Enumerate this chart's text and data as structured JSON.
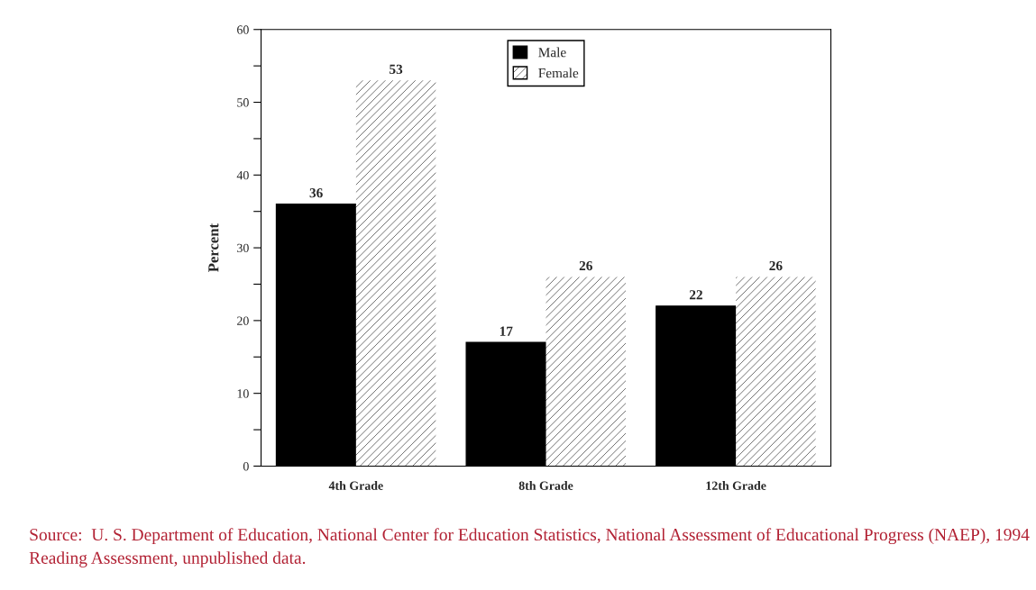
{
  "chart_data": {
    "type": "bar",
    "ylabel": "Percent",
    "categories": [
      "4th Grade",
      "8th Grade",
      "12th Grade"
    ],
    "series": [
      {
        "name": "Male",
        "color": "#000000",
        "values": [
          36,
          17,
          22
        ]
      },
      {
        "name": "Female",
        "color": "#ffffff",
        "values": [
          53,
          26,
          26
        ]
      }
    ],
    "ylim": [
      0,
      60
    ],
    "yticks": [
      0,
      {
        "value": 5,
        "label": null
      },
      10,
      {
        "value": 15,
        "label": null
      },
      20,
      {
        "value": 25,
        "label": null
      },
      30,
      {
        "value": 35,
        "label": null
      },
      40,
      {
        "value": 45,
        "label": null
      },
      50,
      {
        "value": 55,
        "label": null
      },
      60
    ],
    "data_labels": true,
    "legend": "top",
    "grid": false,
    "annotations": [
      "Source:  U. S. Department of Education, National Center for Education Statistics, National Assessment of Educational Progress (NAEP), 1994 Reading Assessment, unpublished data."
    ]
  }
}
